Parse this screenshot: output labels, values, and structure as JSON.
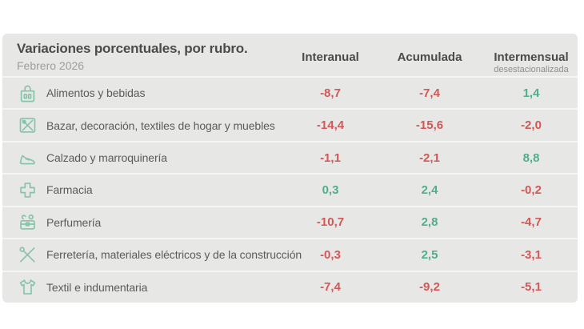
{
  "card": {
    "title": "Variaciones porcentuales, por rubro.",
    "subtitle": "Febrero 2026",
    "background": "#e7e7e6"
  },
  "columns": [
    {
      "label": "Interanual",
      "sublabel": ""
    },
    {
      "label": "Acumulada",
      "sublabel": ""
    },
    {
      "label": "Intermensual",
      "sublabel": "desestacionalizada"
    }
  ],
  "colors": {
    "positive": "#4fae8c",
    "negative": "#d25757",
    "icon": "#86c4aa"
  },
  "rows": [
    {
      "icon": "groceries-icon",
      "label": "Alimentos y bebidas",
      "interanual": "-8,7",
      "acumulada": "-7,4",
      "intermensual": "1,4"
    },
    {
      "icon": "bazar-icon",
      "label": "Bazar, decoración, textiles de hogar y muebles",
      "interanual": "-14,4",
      "acumulada": "-15,6",
      "intermensual": "-2,0"
    },
    {
      "icon": "shoe-icon",
      "label": "Calzado y marroquinería",
      "interanual": "-1,1",
      "acumulada": "-2,1",
      "intermensual": "8,8"
    },
    {
      "icon": "pharmacy-cross-icon",
      "label": "Farmacia",
      "interanual": "0,3",
      "acumulada": "2,4",
      "intermensual": "-0,2"
    },
    {
      "icon": "cosmetics-case-icon",
      "label": "Perfumería",
      "interanual": "-10,7",
      "acumulada": "2,8",
      "intermensual": "-4,7"
    },
    {
      "icon": "tools-icon",
      "label": "Ferretería, materiales eléctricos y de la construcción",
      "interanual": "-0,3",
      "acumulada": "2,5",
      "intermensual": "-3,1"
    },
    {
      "icon": "tshirt-icon",
      "label": "Textil e indumentaria",
      "interanual": "-7,4",
      "acumulada": "-9,2",
      "intermensual": "-5,1"
    }
  ],
  "chart_data": {
    "type": "table",
    "title": "Variaciones porcentuales, por rubro.",
    "subtitle": "Febrero 2026",
    "columns": [
      "Interanual",
      "Acumulada",
      "Intermensual desestacionalizada"
    ],
    "categories": [
      "Alimentos y bebidas",
      "Bazar, decoración, textiles de hogar y muebles",
      "Calzado y marroquinería",
      "Farmacia",
      "Perfumería",
      "Ferretería, materiales eléctricos y de la construcción",
      "Textil e indumentaria"
    ],
    "series": [
      {
        "name": "Interanual",
        "values": [
          -8.7,
          -14.4,
          -1.1,
          0.3,
          -10.7,
          -0.3,
          -7.4
        ]
      },
      {
        "name": "Acumulada",
        "values": [
          -7.4,
          -15.6,
          -2.1,
          2.4,
          2.8,
          2.5,
          -9.2
        ]
      },
      {
        "name": "Intermensual desestacionalizada",
        "values": [
          1.4,
          -2.0,
          8.8,
          -0.2,
          -4.7,
          -3.1,
          -5.1
        ]
      }
    ],
    "value_color_rule": "negative=red, positive=green"
  }
}
